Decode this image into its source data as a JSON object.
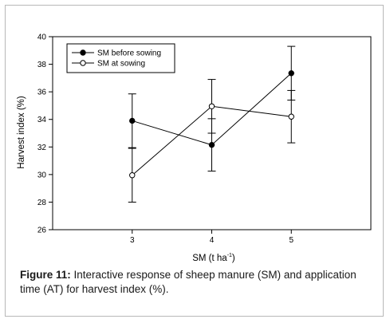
{
  "chart_data": {
    "type": "line",
    "xlabel_main": "SM (t ha",
    "xlabel_sup": "-1",
    "xlabel_end": ")",
    "ylabel": "Harvest index (%)",
    "x": [
      3,
      4,
      5
    ],
    "x_tick_labels": [
      "3",
      "4",
      "5"
    ],
    "xlim": [
      2,
      6
    ],
    "ylim": [
      26,
      40
    ],
    "y_ticks": [
      26,
      28,
      30,
      32,
      34,
      36,
      38,
      40
    ],
    "y_tick_labels": [
      "26",
      "28",
      "30",
      "32",
      "34",
      "36",
      "38",
      "40"
    ],
    "grid": false,
    "legend_placement": "top-left",
    "series": [
      {
        "name": "SM before sowing",
        "marker": "filled-circle",
        "values": [
          33.9,
          32.15,
          37.35
        ],
        "errors": [
          1.95,
          1.9,
          1.95
        ]
      },
      {
        "name": "SM at sowing",
        "marker": "open-circle",
        "values": [
          29.95,
          34.95,
          34.2
        ],
        "errors": [
          1.95,
          1.95,
          1.9
        ]
      }
    ],
    "colors": {
      "line": "#000000",
      "axis": "#000000"
    }
  },
  "caption": {
    "label": "Figure 11:",
    "text": " Interactive response of sheep manure (SM) and application time (AT) for harvest index (%)."
  }
}
